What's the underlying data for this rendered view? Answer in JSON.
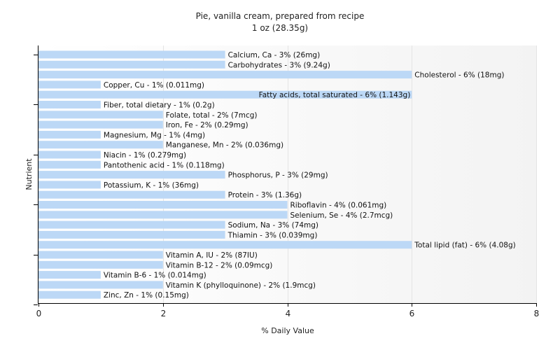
{
  "chart_data": {
    "type": "bar",
    "orientation": "horizontal",
    "title": "Pie, vanilla cream, prepared from recipe",
    "subtitle": "1 oz (28.35g)",
    "xlabel": "% Daily Value",
    "ylabel": "Nutrient",
    "xlim": [
      0,
      8
    ],
    "xticks": [
      "0",
      "2",
      "4",
      "6",
      "8"
    ],
    "grid": "vertical",
    "categories": [
      "Calcium, Ca",
      "Carbohydrates",
      "Cholesterol",
      "Copper, Cu",
      "Fatty acids, total saturated",
      "Fiber, total dietary",
      "Folate, total",
      "Iron, Fe",
      "Magnesium, Mg",
      "Manganese, Mn",
      "Niacin",
      "Pantothenic acid",
      "Phosphorus, P",
      "Potassium, K",
      "Protein",
      "Riboflavin",
      "Selenium, Se",
      "Sodium, Na",
      "Thiamin",
      "Total lipid (fat)",
      "Vitamin A, IU",
      "Vitamin B-12",
      "Vitamin B-6",
      "Vitamin K (phylloquinone)",
      "Zinc, Zn"
    ],
    "values": [
      3,
      3,
      6,
      1,
      6,
      1,
      2,
      2,
      1,
      2,
      1,
      1,
      3,
      1,
      3,
      4,
      4,
      3,
      3,
      6,
      2,
      2,
      1,
      2,
      1
    ],
    "labels": [
      "Calcium, Ca - 3% (26mg)",
      "Carbohydrates - 3% (9.24g)",
      "Cholesterol - 6% (18mg)",
      "Copper, Cu - 1% (0.011mg)",
      "Fatty acids, total saturated - 6% (1.143g)",
      "Fiber, total dietary - 1% (0.2g)",
      "Folate, total - 2% (7mcg)",
      "Iron, Fe - 2% (0.29mg)",
      "Magnesium, Mg - 1% (4mg)",
      "Manganese, Mn - 2% (0.036mg)",
      "Niacin - 1% (0.279mg)",
      "Pantothenic acid - 1% (0.118mg)",
      "Phosphorus, P - 3% (29mg)",
      "Potassium, K - 1% (36mg)",
      "Protein - 3% (1.36g)",
      "Riboflavin - 4% (0.061mg)",
      "Selenium, Se - 4% (2.7mcg)",
      "Sodium, Na - 3% (74mg)",
      "Thiamin - 3% (0.039mg)",
      "Total lipid (fat) - 6% (4.08g)",
      "Vitamin A, IU - 2% (87IU)",
      "Vitamin B-12 - 2% (0.09mcg)",
      "Vitamin B-6 - 1% (0.014mg)",
      "Vitamin K (phylloquinone) - 2% (1.9mcg)",
      "Zinc, Zn - 1% (0.15mg)"
    ],
    "inside_label_indices": [
      4
    ],
    "colors": {
      "bar": "#bcd8f6",
      "background": "#ffffff"
    }
  }
}
